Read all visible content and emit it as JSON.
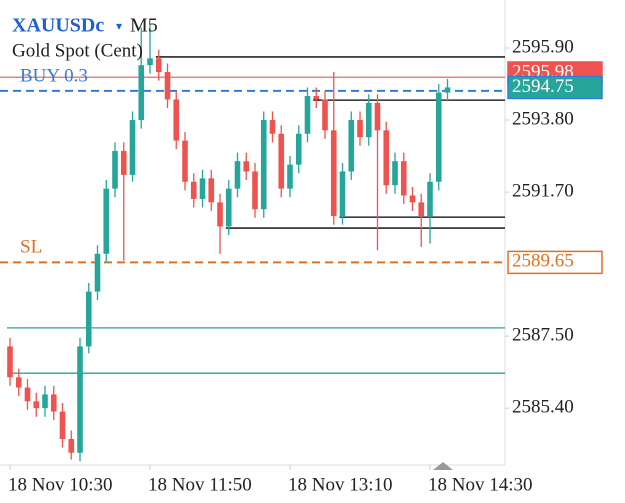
{
  "chart_data": {
    "type": "candlestick",
    "symbol": "XAUUSDc",
    "timeframe": "M5",
    "description": "Gold Spot (Cent)",
    "categories": [
      "18 Nov 10:30",
      null,
      null,
      null,
      null,
      null,
      null,
      null,
      null,
      null,
      null,
      null,
      null,
      null,
      null,
      null,
      "18 Nov 11:50",
      null,
      null,
      null,
      null,
      null,
      null,
      null,
      null,
      null,
      null,
      null,
      null,
      null,
      null,
      null,
      "18 Nov 13:10",
      null,
      null,
      null,
      null,
      null,
      null,
      null,
      null,
      null,
      null,
      null,
      null,
      null,
      null,
      null,
      "18 Nov 14:30",
      null,
      null
    ],
    "open": [
      2587.2,
      2586.3,
      2586.0,
      2585.6,
      2585.4,
      2585.8,
      2585.3,
      2584.5,
      2584.1,
      2587.2,
      2588.8,
      2589.9,
      2591.8,
      2592.9,
      2592.2,
      2593.8,
      2595.4,
      2595.6,
      2595.2,
      2594.4,
      2593.2,
      2592.0,
      2591.5,
      2592.1,
      2591.4,
      2590.7,
      2591.8,
      2592.6,
      2592.3,
      2591.2,
      2593.8,
      2593.4,
      2591.8,
      2592.5,
      2593.4,
      2594.5,
      2594.4,
      2593.5,
      2591.0,
      2592.3,
      2593.8,
      2593.3,
      2594.3,
      2593.5,
      2591.9,
      2592.6,
      2591.6,
      2591.4,
      2591.0,
      2592.0,
      2594.6
    ],
    "high": [
      2587.45,
      2586.55,
      2586.25,
      2585.85,
      2586.05,
      2586.05,
      2585.55,
      2584.75,
      2587.45,
      2589.05,
      2590.15,
      2592.05,
      2593.15,
      2593.15,
      2594.05,
      2596.5,
      2596.6,
      2595.85,
      2595.45,
      2594.65,
      2593.45,
      2592.25,
      2592.35,
      2592.35,
      2591.65,
      2592.05,
      2592.85,
      2592.85,
      2592.55,
      2594.05,
      2594.05,
      2593.65,
      2592.75,
      2593.65,
      2594.75,
      2594.75,
      2594.65,
      2595.2,
      2592.55,
      2594.05,
      2594.05,
      2594.55,
      2594.55,
      2593.75,
      2592.85,
      2592.85,
      2591.85,
      2591.65,
      2592.25,
      2594.85,
      2595.0
    ],
    "low": [
      2586.05,
      2585.75,
      2585.35,
      2585.15,
      2585.15,
      2585.05,
      2584.25,
      2583.9,
      2583.85,
      2587.0,
      2588.55,
      2589.65,
      2591.55,
      2589.7,
      2592.0,
      2593.55,
      2595.15,
      2594.95,
      2594.15,
      2592.95,
      2591.75,
      2591.25,
      2591.25,
      2591.15,
      2589.9,
      2590.45,
      2591.55,
      2592.05,
      2590.95,
      2590.95,
      2593.15,
      2591.55,
      2591.55,
      2592.25,
      2593.15,
      2594.15,
      2593.25,
      2590.75,
      2590.75,
      2592.05,
      2593.05,
      2593.05,
      2590.0,
      2591.65,
      2591.65,
      2591.35,
      2591.15,
      2590.1,
      2590.2,
      2591.75,
      2594.35
    ],
    "close": [
      2586.3,
      2586.0,
      2585.6,
      2585.4,
      2585.8,
      2585.3,
      2584.5,
      2584.1,
      2587.2,
      2588.8,
      2589.9,
      2591.8,
      2592.9,
      2592.2,
      2593.8,
      2595.4,
      2595.6,
      2595.2,
      2594.4,
      2593.2,
      2592.0,
      2591.5,
      2592.1,
      2591.4,
      2590.7,
      2591.8,
      2592.6,
      2592.3,
      2591.2,
      2593.8,
      2593.4,
      2591.8,
      2592.5,
      2593.4,
      2594.5,
      2594.4,
      2593.5,
      2591.0,
      2592.3,
      2593.8,
      2593.3,
      2594.3,
      2593.5,
      2591.9,
      2592.6,
      2591.6,
      2591.4,
      2591.0,
      2592.0,
      2594.6,
      2594.75
    ],
    "up_color": "#26a69a",
    "down_color": "#ef5350",
    "ylim": [
      2583.83,
      2597.3
    ],
    "yticks": [
      {
        "value": 2595.9,
        "label": "2595.90"
      },
      {
        "value": 2593.8,
        "label": "2593.80"
      },
      {
        "value": 2591.7,
        "label": "2591.70"
      },
      {
        "value": 2587.5,
        "label": "2587.50"
      },
      {
        "value": 2585.4,
        "label": "2585.40"
      }
    ],
    "bid": {
      "value": 2594.75,
      "label": "2594.75",
      "color": "#26a69a"
    },
    "ask": {
      "label": "2595.98",
      "color": "#ef5350"
    },
    "position_line": {
      "value": 2595.05,
      "color": "#ef5350"
    },
    "buy": {
      "label": "BUY 0.3",
      "value": 2594.65,
      "color": "#2f7de1"
    },
    "sl": {
      "label": "SL",
      "value": 2589.65,
      "value_label": "2589.65",
      "color": "#e07020"
    },
    "levels": [
      {
        "value": 2595.64,
        "start": 17,
        "color": "#000000"
      },
      {
        "value": 2594.38,
        "start": 35,
        "color": "#000000"
      },
      {
        "value": 2590.97,
        "start": 38,
        "color": "#000000"
      },
      {
        "value": 2590.65,
        "start": 25,
        "color": "#000000"
      },
      {
        "value": 2587.74,
        "start": 0,
        "color": "#26a69a"
      },
      {
        "value": 2586.42,
        "start": 0,
        "color": "#26a69a"
      }
    ]
  }
}
